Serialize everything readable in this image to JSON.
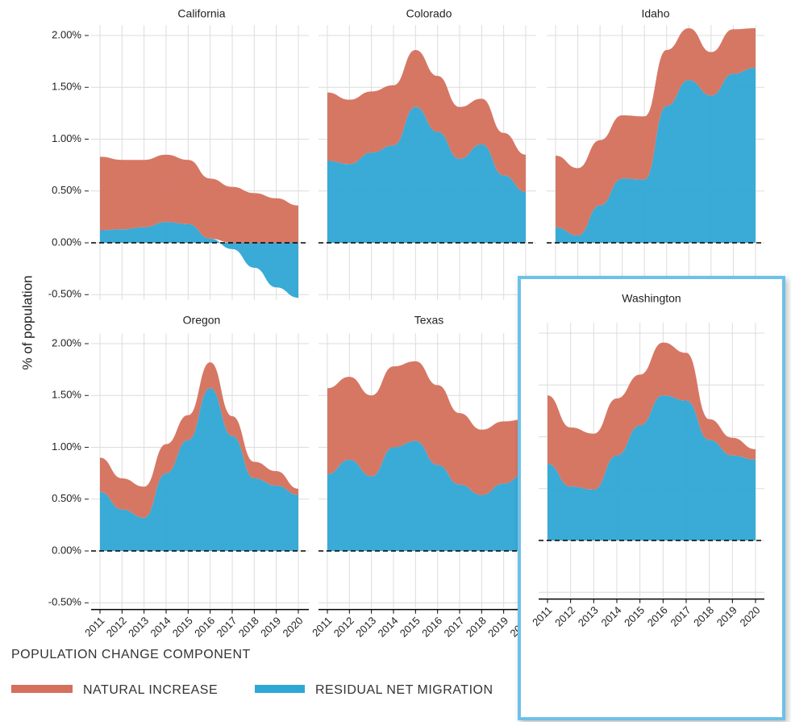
{
  "chart_data": {
    "type": "area",
    "stacked": true,
    "ylabel": "% of population",
    "legend_title": "POPULATION CHANGE COMPONENT",
    "x": [
      2011,
      2012,
      2013,
      2014,
      2015,
      2016,
      2017,
      2018,
      2019,
      2020
    ],
    "xticks": [
      2011,
      2012,
      2013,
      2014,
      2015,
      2016,
      2017,
      2018,
      2019,
      2020
    ],
    "ylim": [
      -0.55,
      2.1
    ],
    "yticks": [
      {
        "value": -0.5,
        "label": "-0.50%"
      },
      {
        "value": 0,
        "label": "0.00%"
      },
      {
        "value": 0.5,
        "label": "0.50%"
      },
      {
        "value": 1,
        "label": "1.00%"
      },
      {
        "value": 1.5,
        "label": "1.50%"
      },
      {
        "value": 2,
        "label": "2.00%"
      }
    ],
    "grid": true,
    "series": [
      {
        "name": "NATURAL INCREASE",
        "color": "#d4705c"
      },
      {
        "name": "RESIDUAL NET MIGRATION",
        "color": "#2ea7d4"
      }
    ],
    "panels": [
      {
        "title": "California",
        "values": [
          [
            0.71,
            0.67,
            0.65,
            0.65,
            0.62,
            0.58,
            0.54,
            0.48,
            0.43,
            0.36
          ],
          [
            0.12,
            0.13,
            0.15,
            0.2,
            0.18,
            0.04,
            -0.06,
            -0.24,
            -0.43,
            -0.53
          ]
        ]
      },
      {
        "title": "Colorado",
        "values": [
          [
            0.66,
            0.62,
            0.59,
            0.58,
            0.55,
            0.54,
            0.5,
            0.44,
            0.41,
            0.36
          ],
          [
            0.79,
            0.76,
            0.87,
            0.94,
            1.31,
            1.07,
            0.81,
            0.95,
            0.65,
            0.49
          ]
        ]
      },
      {
        "title": "Idaho",
        "values": [
          [
            0.69,
            0.65,
            0.63,
            0.61,
            0.61,
            0.54,
            0.5,
            0.42,
            0.43,
            0.38
          ],
          [
            0.15,
            0.07,
            0.36,
            0.62,
            0.61,
            1.32,
            1.57,
            1.42,
            1.63,
            1.69
          ]
        ]
      },
      {
        "title": "Oregon",
        "values": [
          [
            0.33,
            0.3,
            0.3,
            0.28,
            0.24,
            0.25,
            0.19,
            0.16,
            0.14,
            0.06
          ],
          [
            0.57,
            0.4,
            0.32,
            0.75,
            1.07,
            1.57,
            1.11,
            0.7,
            0.63,
            0.54
          ]
        ]
      },
      {
        "title": "Texas",
        "values": [
          [
            0.83,
            0.8,
            0.78,
            0.78,
            0.77,
            0.77,
            0.69,
            0.63,
            0.6,
            0.52
          ],
          [
            0.74,
            0.88,
            0.72,
            1.0,
            1.06,
            0.83,
            0.64,
            0.54,
            0.65,
            0.75
          ]
        ]
      },
      {
        "title": "Washington",
        "values": [
          [
            0.66,
            0.57,
            0.54,
            0.55,
            0.49,
            0.51,
            0.46,
            0.2,
            0.17,
            0.1
          ],
          [
            0.74,
            0.52,
            0.49,
            0.82,
            1.11,
            1.4,
            1.35,
            0.97,
            0.82,
            0.78
          ]
        ]
      }
    ]
  }
}
